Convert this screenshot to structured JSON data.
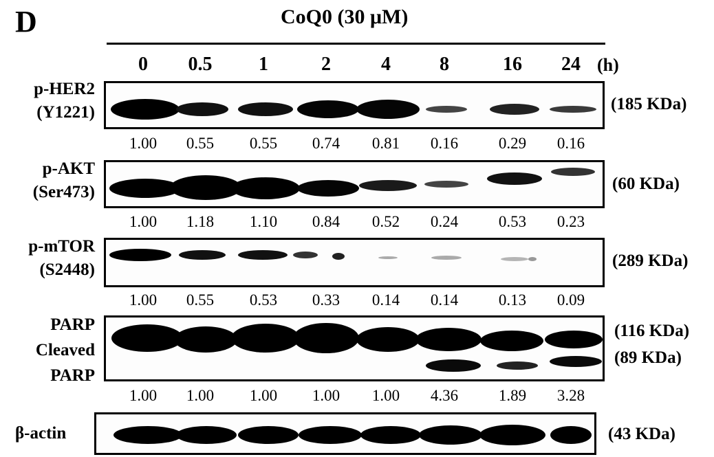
{
  "panel_label": "D",
  "treatment": "CoQ0 (30 μM)",
  "time_points": [
    "0",
    "0.5",
    "1",
    "2",
    "4",
    "8",
    "16",
    "24"
  ],
  "time_unit": "(h)",
  "blots": [
    {
      "label_lines": [
        "p-HER2",
        "(Y1221)"
      ],
      "mw": [
        "(185 KDa)"
      ],
      "quant": [
        "1.00",
        "0.55",
        "0.55",
        "0.74",
        "0.81",
        "0.16",
        "0.29",
        "0.16"
      ]
    },
    {
      "label_lines": [
        "p-AKT",
        "(Ser473)"
      ],
      "mw": [
        "(60 KDa)"
      ],
      "quant": [
        "1.00",
        "1.18",
        "1.10",
        "0.84",
        "0.52",
        "0.24",
        "0.53",
        "0.23"
      ]
    },
    {
      "label_lines": [
        "p-mTOR",
        "(S2448)"
      ],
      "mw": [
        "(289 KDa)"
      ],
      "quant": [
        "1.00",
        "0.55",
        "0.53",
        "0.33",
        "0.14",
        "0.14",
        "0.13",
        "0.09"
      ]
    },
    {
      "label_lines": [
        "PARP",
        "Cleaved",
        "PARP"
      ],
      "mw": [
        "(116 KDa)",
        "(89 KDa)"
      ],
      "quant": [
        "1.00",
        "1.00",
        "1.00",
        "1.00",
        "1.00",
        "4.36",
        "1.89",
        "3.28"
      ]
    },
    {
      "label_lines": [
        "β-actin"
      ],
      "mw": [
        "(43 KDa)"
      ],
      "quant": []
    }
  ]
}
